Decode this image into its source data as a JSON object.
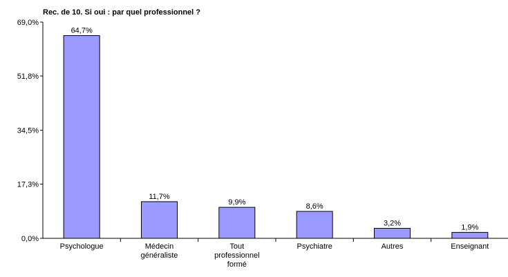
{
  "chart_data": {
    "type": "bar",
    "title": "Rec. de 10. Si oui : par quel professionnel ?",
    "categories": [
      "Psychologue",
      "Médecin généraliste",
      "Tout professionnel formé",
      "Psychiatre",
      "Autres",
      "Enseignant"
    ],
    "values": [
      64.7,
      11.7,
      9.9,
      8.6,
      3.2,
      1.9
    ],
    "value_labels": [
      "64,7%",
      "11,7%",
      "9,9%",
      "8,6%",
      "3,2%",
      "1,9%"
    ],
    "color": "#9999ff",
    "ylim": [
      0,
      69
    ],
    "yticks": [
      {
        "value": 0,
        "label": "0,0%"
      },
      {
        "value": 17.3,
        "label": "17,3%"
      },
      {
        "value": 34.5,
        "label": "34,5%"
      },
      {
        "value": 51.8,
        "label": "51,8%"
      },
      {
        "value": 69,
        "label": "69,0%"
      }
    ]
  }
}
